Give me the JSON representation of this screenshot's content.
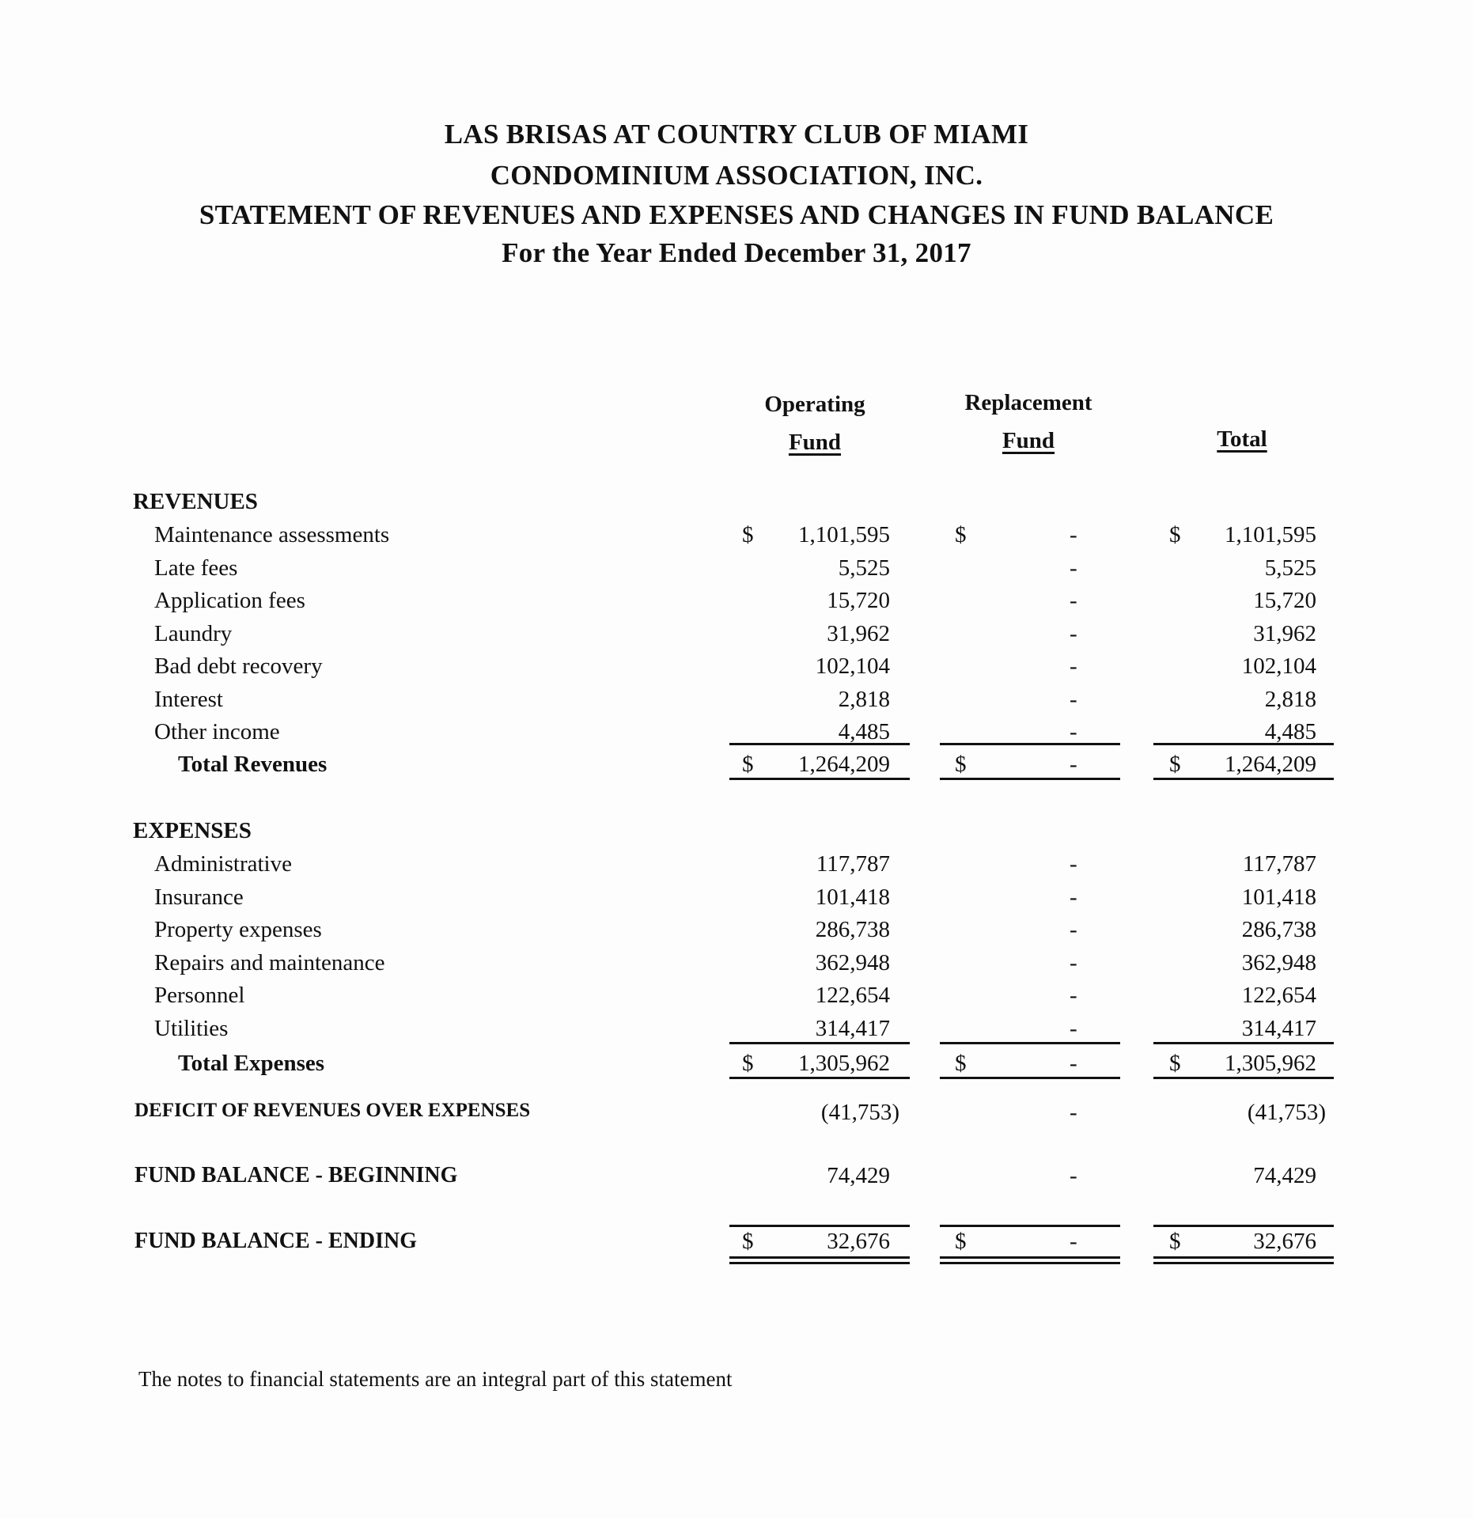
{
  "header": {
    "line1": "LAS BRISAS AT COUNTRY CLUB OF MIAMI",
    "line2": "CONDOMINIUM ASSOCIATION, INC.",
    "line3": "STATEMENT OF REVENUES AND EXPENSES AND CHANGES IN FUND BALANCE",
    "line4": "For the Year Ended December 31, 2017"
  },
  "columns": {
    "operating_top": "Operating",
    "operating_bottom": "Fund",
    "replacement_top": "Replacement",
    "replacement_bottom": "Fund",
    "total": "Total"
  },
  "currency": "$",
  "dash": "-",
  "revenues": {
    "heading": "REVENUES",
    "items": [
      {
        "label": "Maintenance assessments",
        "operating": "1,101,595",
        "total": "1,101,595"
      },
      {
        "label": "Late fees",
        "operating": "5,525",
        "total": "5,525"
      },
      {
        "label": "Application fees",
        "operating": "15,720",
        "total": "15,720"
      },
      {
        "label": "Laundry",
        "operating": "31,962",
        "total": "31,962"
      },
      {
        "label": "Bad debt recovery",
        "operating": "102,104",
        "total": "102,104"
      },
      {
        "label": "Interest",
        "operating": "2,818",
        "total": "2,818"
      },
      {
        "label": "Other income",
        "operating": "4,485",
        "total": "4,485"
      }
    ],
    "total": {
      "label": "Total Revenues",
      "operating": "1,264,209",
      "total": "1,264,209"
    }
  },
  "expenses": {
    "heading": "EXPENSES",
    "items": [
      {
        "label": "Administrative",
        "operating": "117,787",
        "total": "117,787"
      },
      {
        "label": "Insurance",
        "operating": "101,418",
        "total": "101,418"
      },
      {
        "label": "Property expenses",
        "operating": "286,738",
        "total": "286,738"
      },
      {
        "label": "Repairs and maintenance",
        "operating": "362,948",
        "total": "362,948"
      },
      {
        "label": "Personnel",
        "operating": "122,654",
        "total": "122,654"
      },
      {
        "label": "Utilities",
        "operating": "314,417",
        "total": "314,417"
      }
    ],
    "total": {
      "label": "Total Expenses",
      "operating": "1,305,962",
      "total": "1,305,962"
    }
  },
  "deficit": {
    "label": "DEFICIT OF REVENUES OVER EXPENSES",
    "operating": "(41,753)",
    "total": "(41,753)"
  },
  "fund_beginning": {
    "label": "FUND BALANCE - BEGINNING",
    "operating": "74,429",
    "total": "74,429"
  },
  "fund_ending": {
    "label": "FUND BALANCE - ENDING",
    "operating": "32,676",
    "total": "32,676"
  },
  "footnote": "The notes to financial statements are an integral part of this statement"
}
